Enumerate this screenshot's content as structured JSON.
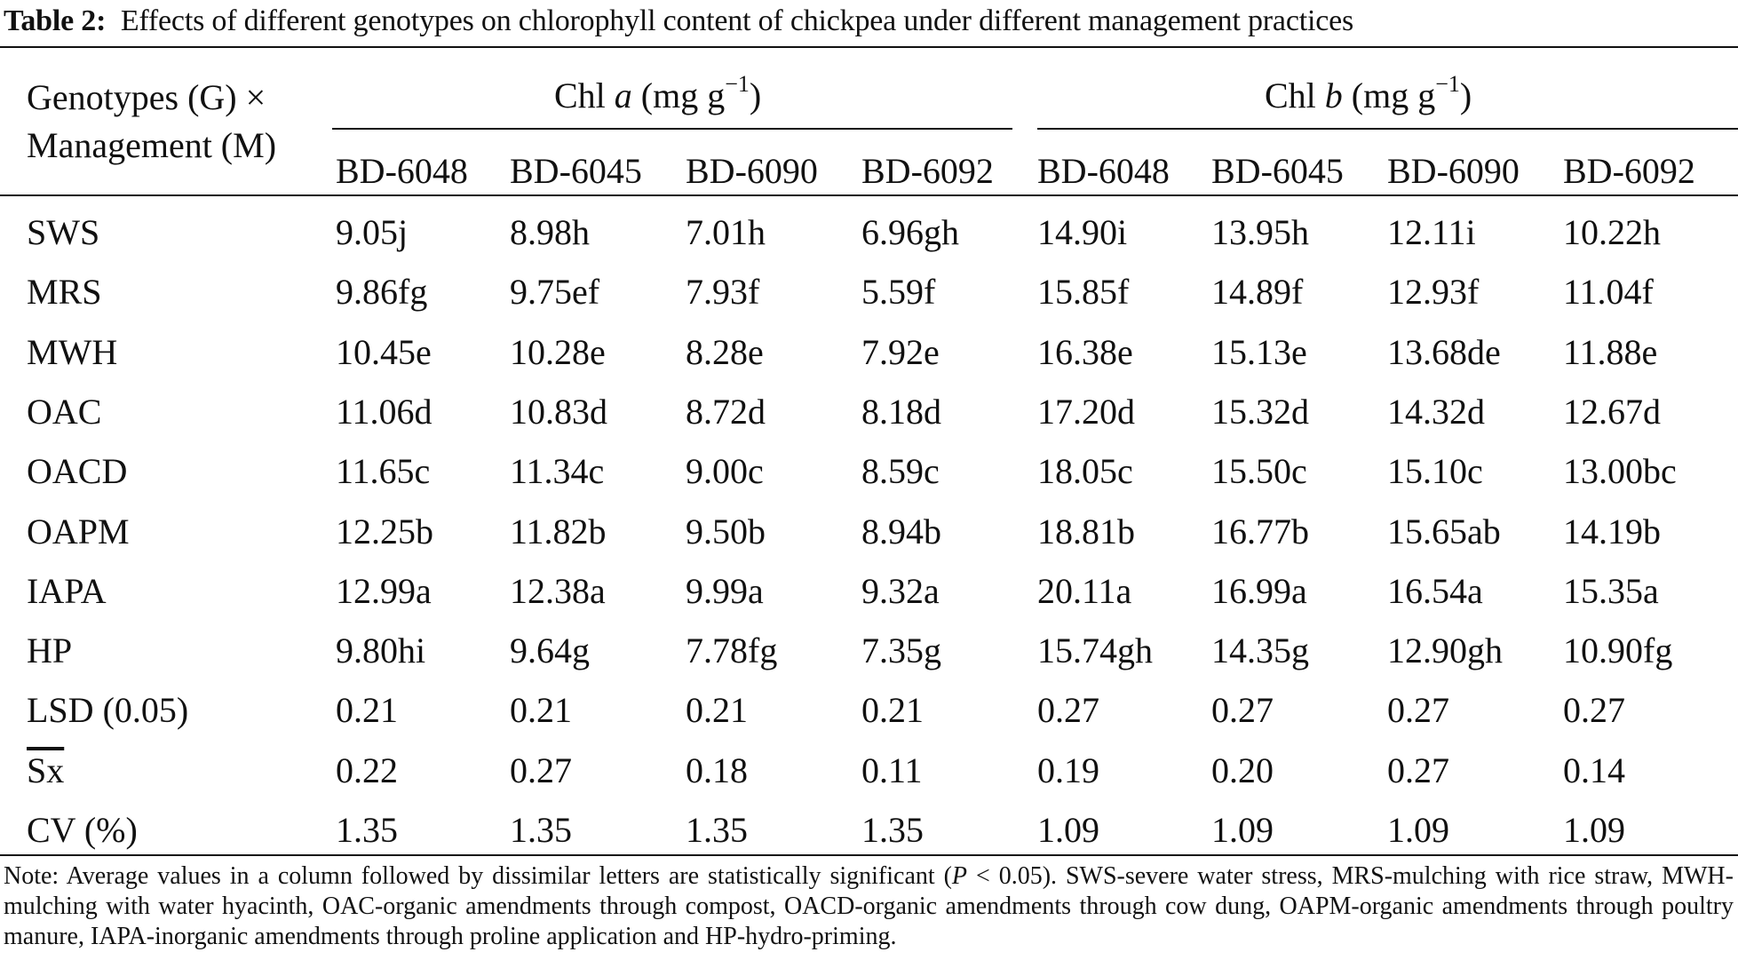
{
  "caption": {
    "label": "Table 2:",
    "text": "Effects of different genotypes on chlorophyll content of chickpea under different management practices"
  },
  "header": {
    "row_header_line1": "Genotypes (G) ×",
    "row_header_line2": "Management (M)",
    "group_a": {
      "prefix": "Chl ",
      "var": "a",
      "unit": " (mg g",
      "sup": "−1",
      "close": ")"
    },
    "group_b": {
      "prefix": "Chl ",
      "var": "b",
      "unit": " (mg g",
      "sup": "−1",
      "close": ")"
    },
    "genotypes": [
      "BD-6048",
      "BD-6045",
      "BD-6090",
      "BD-6092",
      "BD-6048",
      "BD-6045",
      "BD-6090",
      "BD-6092"
    ]
  },
  "rows": [
    {
      "label": "SWS",
      "values": [
        "9.05j",
        "8.98h",
        "7.01h",
        "6.96gh",
        "14.90i",
        "13.95h",
        "12.11i",
        "10.22h"
      ]
    },
    {
      "label": "MRS",
      "values": [
        "9.86fg",
        "9.75ef",
        "7.93f",
        "5.59f",
        "15.85f",
        "14.89f",
        "12.93f",
        "11.04f"
      ]
    },
    {
      "label": "MWH",
      "values": [
        "10.45e",
        "10.28e",
        "8.28e",
        "7.92e",
        "16.38e",
        "15.13e",
        "13.68de",
        "11.88e"
      ]
    },
    {
      "label": "OAC",
      "values": [
        "11.06d",
        "10.83d",
        "8.72d",
        "8.18d",
        "17.20d",
        "15.32d",
        "14.32d",
        "12.67d"
      ]
    },
    {
      "label": "OACD",
      "values": [
        "11.65c",
        "11.34c",
        "9.00c",
        "8.59c",
        "18.05c",
        "15.50c",
        "15.10c",
        "13.00bc"
      ]
    },
    {
      "label": "OAPM",
      "values": [
        "12.25b",
        "11.82b",
        "9.50b",
        "8.94b",
        "18.81b",
        "16.77b",
        "15.65ab",
        "14.19b"
      ]
    },
    {
      "label": "IAPA",
      "values": [
        "12.99a",
        "12.38a",
        "9.99a",
        "9.32a",
        "20.11a",
        "16.99a",
        "16.54a",
        "15.35a"
      ]
    },
    {
      "label": "HP",
      "values": [
        "9.80hi",
        "9.64g",
        "7.78fg",
        "7.35g",
        "15.74gh",
        "14.35g",
        "12.90gh",
        "10.90fg"
      ]
    },
    {
      "label": "LSD (0.05)",
      "values": [
        "0.21",
        "0.21",
        "0.21",
        "0.21",
        "0.27",
        "0.27",
        "0.27",
        "0.27"
      ]
    },
    {
      "label": "Sx",
      "values": [
        "0.22",
        "0.27",
        "0.18",
        "0.11",
        "0.19",
        "0.20",
        "0.27",
        "0.14"
      ]
    },
    {
      "label": "CV (%)",
      "values": [
        "1.35",
        "1.35",
        "1.35",
        "1.35",
        "1.09",
        "1.09",
        "1.09",
        "1.09"
      ]
    }
  ],
  "note": {
    "prefix": "Note: Average values in a column followed by dissimilar letters are statistically significant (",
    "p_var": "P",
    "p_rest": " < 0.05). SWS-severe water stress, MRS-mulching with rice straw, MWH-mulching with water hyacinth, OAC-organic amendments through compost, OACD-organic amendments through cow dung, OAPM-organic amendments through poultry manure, IAPA-inorganic amendments through proline application and HP-hydro-priming."
  }
}
